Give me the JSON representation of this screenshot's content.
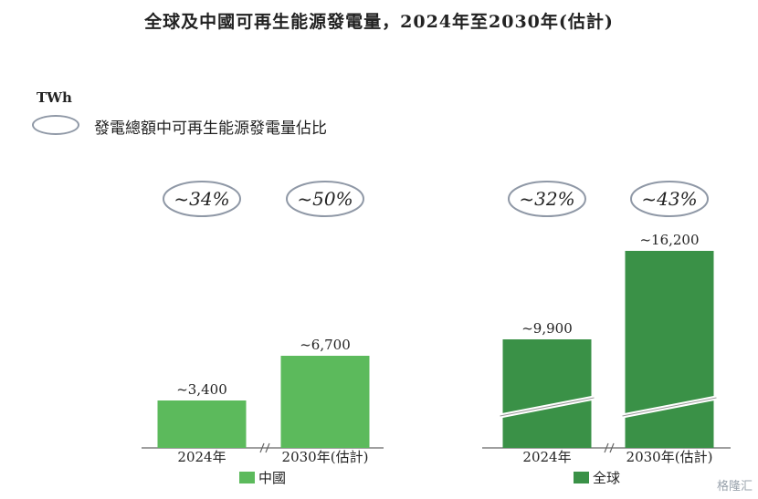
{
  "title": "全球及中國可再生能源發電量，2024年至2030年(估計)",
  "unit": "TWh",
  "ellipse_legend": "發電總額中可再生能源發電量佔比",
  "colors": {
    "china": "#5cba5c",
    "global": "#3a9147",
    "ellipse": "#8f98a6",
    "axis": "#666666"
  },
  "chart_data": [
    {
      "type": "bar",
      "series_name": "中國",
      "categories": [
        "2024年",
        "2030年(估計)"
      ],
      "values": [
        3400,
        6700
      ],
      "value_labels": [
        "~3,400",
        "~6,700"
      ],
      "share_labels": [
        "~34%",
        "~50%"
      ],
      "axis_break": true
    },
    {
      "type": "bar",
      "series_name": "全球",
      "categories": [
        "2024年",
        "2030年(估計)"
      ],
      "values": [
        9900,
        16200
      ],
      "value_labels": [
        "~9,900",
        "~16,200"
      ],
      "share_labels": [
        "~32%",
        "~43%"
      ],
      "axis_break": true,
      "bar_break": true
    }
  ],
  "legend": {
    "china": "中國",
    "global": "全球"
  },
  "watermark": "格隆汇"
}
